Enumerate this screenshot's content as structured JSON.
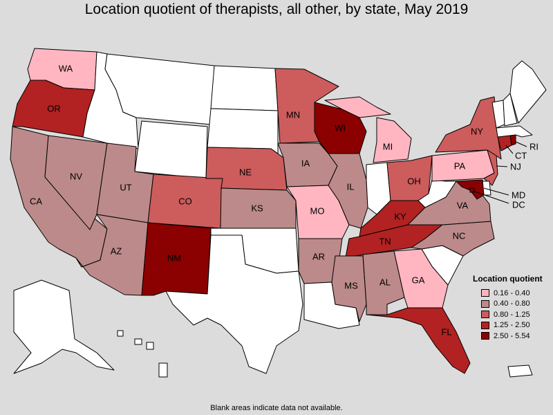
{
  "title": "Location quotient of therapists, all other, by state, May 2019",
  "footnote": "Blank areas indicate data not available.",
  "legend": {
    "title": "Location quotient",
    "items": [
      {
        "label": "0.16 - 0.40",
        "color": "#ffb6c1"
      },
      {
        "label": "0.40 - 0.80",
        "color": "#bc8a8a"
      },
      {
        "label": "0.80 - 1.25",
        "color": "#cd5c5c"
      },
      {
        "label": "1.25 - 2.50",
        "color": "#b22222"
      },
      {
        "label": "2.50 - 5.54",
        "color": "#8b0000"
      }
    ]
  },
  "colors": {
    "blank": "#ffffff",
    "background": "#dcdcdc"
  },
  "states": [
    {
      "code": "WA",
      "label": "WA",
      "color": "#ffb6c1"
    },
    {
      "code": "OR",
      "label": "OR",
      "color": "#b22222"
    },
    {
      "code": "CA",
      "label": "CA",
      "color": "#bc8a8a"
    },
    {
      "code": "NV",
      "label": "NV",
      "color": "#bc8a8a"
    },
    {
      "code": "ID",
      "label": "",
      "color": "#ffffff"
    },
    {
      "code": "MT",
      "label": "",
      "color": "#ffffff"
    },
    {
      "code": "WY",
      "label": "",
      "color": "#ffffff"
    },
    {
      "code": "UT",
      "label": "UT",
      "color": "#bc8a8a"
    },
    {
      "code": "AZ",
      "label": "AZ",
      "color": "#bc8a8a"
    },
    {
      "code": "CO",
      "label": "CO",
      "color": "#cd5c5c"
    },
    {
      "code": "NM",
      "label": "NM",
      "color": "#8b0000"
    },
    {
      "code": "ND",
      "label": "",
      "color": "#ffffff"
    },
    {
      "code": "SD",
      "label": "",
      "color": "#ffffff"
    },
    {
      "code": "NE",
      "label": "NE",
      "color": "#cd5c5c"
    },
    {
      "code": "KS",
      "label": "KS",
      "color": "#bc8a8a"
    },
    {
      "code": "OK",
      "label": "",
      "color": "#ffffff"
    },
    {
      "code": "TX",
      "label": "",
      "color": "#ffffff"
    },
    {
      "code": "MN",
      "label": "MN",
      "color": "#cd5c5c"
    },
    {
      "code": "IA",
      "label": "IA",
      "color": "#bc8a8a"
    },
    {
      "code": "MO",
      "label": "MO",
      "color": "#ffb6c1"
    },
    {
      "code": "AR",
      "label": "AR",
      "color": "#bc8a8a"
    },
    {
      "code": "LA",
      "label": "",
      "color": "#ffffff"
    },
    {
      "code": "WI",
      "label": "WI",
      "color": "#8b0000"
    },
    {
      "code": "IL",
      "label": "IL",
      "color": "#bc8a8a"
    },
    {
      "code": "MI",
      "label": "MI",
      "color": "#ffb6c1"
    },
    {
      "code": "IN",
      "label": "",
      "color": "#ffffff"
    },
    {
      "code": "OH",
      "label": "OH",
      "color": "#cd5c5c"
    },
    {
      "code": "KY",
      "label": "KY",
      "color": "#b22222"
    },
    {
      "code": "TN",
      "label": "TN",
      "color": "#b22222"
    },
    {
      "code": "MS",
      "label": "MS",
      "color": "#bc8a8a"
    },
    {
      "code": "AL",
      "label": "AL",
      "color": "#bc8a8a"
    },
    {
      "code": "GA",
      "label": "GA",
      "color": "#ffb6c1"
    },
    {
      "code": "FL",
      "label": "FL",
      "color": "#b22222"
    },
    {
      "code": "SC",
      "label": "",
      "color": "#ffffff"
    },
    {
      "code": "NC",
      "label": "NC",
      "color": "#bc8a8a"
    },
    {
      "code": "VA",
      "label": "VA",
      "color": "#bc8a8a"
    },
    {
      "code": "WV",
      "label": "",
      "color": "#ffffff"
    },
    {
      "code": "PA",
      "label": "PA",
      "color": "#ffb6c1"
    },
    {
      "code": "NY",
      "label": "NY",
      "color": "#cd5c5c"
    },
    {
      "code": "NJ",
      "label": "NJ",
      "color": "#cd5c5c"
    },
    {
      "code": "DE",
      "label": "",
      "color": "#ffffff"
    },
    {
      "code": "MD",
      "label": "MD",
      "color": "#8b0000"
    },
    {
      "code": "DC",
      "label": "DC",
      "color": "#8b0000"
    },
    {
      "code": "CT",
      "label": "CT",
      "color": "#b22222"
    },
    {
      "code": "RI",
      "label": "RI",
      "color": "#8b0000"
    },
    {
      "code": "MA",
      "label": "",
      "color": "#ffffff"
    },
    {
      "code": "VT",
      "label": "",
      "color": "#ffffff"
    },
    {
      "code": "NH",
      "label": "",
      "color": "#ffffff"
    },
    {
      "code": "ME",
      "label": "",
      "color": "#ffffff"
    },
    {
      "code": "AK",
      "label": "",
      "color": "#ffffff"
    },
    {
      "code": "HI",
      "label": "",
      "color": "#ffffff"
    },
    {
      "code": "PR",
      "label": "",
      "color": "#ffffff"
    }
  ]
}
